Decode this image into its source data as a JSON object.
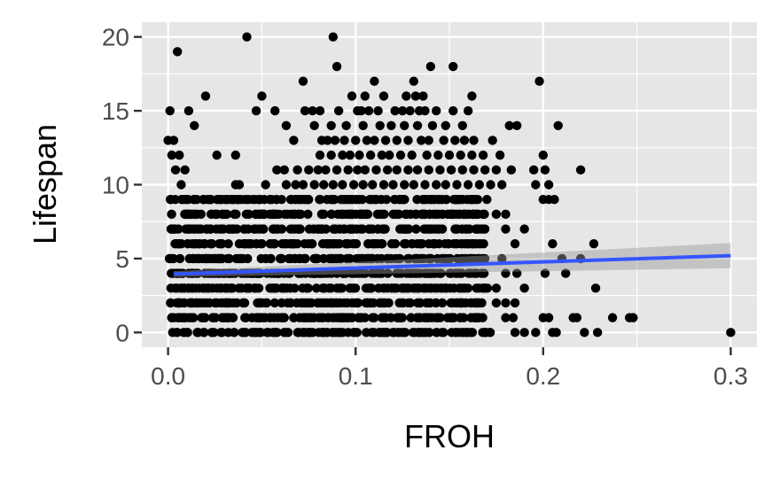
{
  "chart_data": {
    "type": "scatter",
    "title": "",
    "xlabel": "FROH",
    "ylabel": "Lifespan",
    "xlim": [
      -0.014,
      0.314
    ],
    "ylim": [
      -1.0,
      21.0
    ],
    "x_ticks": [
      "0.0",
      "0.1",
      "0.2",
      "0.3"
    ],
    "x_tick_values": [
      0.0,
      0.1,
      0.2,
      0.3
    ],
    "y_ticks": [
      "0",
      "5",
      "10",
      "15",
      "20"
    ],
    "y_tick_values": [
      0,
      5,
      10,
      15,
      20
    ],
    "grid": true,
    "background": "#e6e6e6",
    "point_color": "#000000",
    "fit_line_color": "#3355ff",
    "ribbon_color": "#999999",
    "points": [
      [
        0.088,
        20
      ],
      [
        0.042,
        20
      ],
      [
        0.005,
        19
      ],
      [
        0.09,
        18
      ],
      [
        0.14,
        18
      ],
      [
        0.152,
        18
      ],
      [
        0.072,
        17
      ],
      [
        0.11,
        17
      ],
      [
        0.131,
        17
      ],
      [
        0.198,
        17
      ],
      [
        0.02,
        16
      ],
      [
        0.05,
        16
      ],
      [
        0.098,
        16
      ],
      [
        0.105,
        16
      ],
      [
        0.115,
        16
      ],
      [
        0.127,
        16
      ],
      [
        0.132,
        16
      ],
      [
        0.136,
        16
      ],
      [
        0.162,
        16
      ],
      [
        0.001,
        15
      ],
      [
        0.011,
        15
      ],
      [
        0.047,
        15
      ],
      [
        0.057,
        15
      ],
      [
        0.073,
        15
      ],
      [
        0.077,
        15
      ],
      [
        0.081,
        15
      ],
      [
        0.091,
        15
      ],
      [
        0.101,
        15
      ],
      [
        0.103,
        15
      ],
      [
        0.107,
        15
      ],
      [
        0.112,
        15
      ],
      [
        0.121,
        15
      ],
      [
        0.125,
        15
      ],
      [
        0.129,
        15
      ],
      [
        0.134,
        15
      ],
      [
        0.137,
        15
      ],
      [
        0.143,
        15
      ],
      [
        0.152,
        15
      ],
      [
        0.16,
        15
      ],
      [
        0.014,
        14
      ],
      [
        0.063,
        14
      ],
      [
        0.078,
        14
      ],
      [
        0.087,
        14
      ],
      [
        0.095,
        14
      ],
      [
        0.104,
        14
      ],
      [
        0.113,
        14
      ],
      [
        0.119,
        14
      ],
      [
        0.126,
        14
      ],
      [
        0.133,
        14
      ],
      [
        0.141,
        14
      ],
      [
        0.148,
        14
      ],
      [
        0.157,
        14
      ],
      [
        0.182,
        14
      ],
      [
        0.186,
        14
      ],
      [
        0.208,
        14
      ],
      [
        0.0,
        13
      ],
      [
        0.003,
        13
      ],
      [
        0.067,
        13
      ],
      [
        0.082,
        13
      ],
      [
        0.085,
        13
      ],
      [
        0.089,
        13
      ],
      [
        0.094,
        13
      ],
      [
        0.1,
        13
      ],
      [
        0.106,
        13
      ],
      [
        0.11,
        13
      ],
      [
        0.116,
        13
      ],
      [
        0.122,
        13
      ],
      [
        0.128,
        13
      ],
      [
        0.135,
        13
      ],
      [
        0.139,
        13
      ],
      [
        0.147,
        13
      ],
      [
        0.153,
        13
      ],
      [
        0.158,
        13
      ],
      [
        0.163,
        13
      ],
      [
        0.173,
        13
      ],
      [
        0.002,
        12
      ],
      [
        0.006,
        12
      ],
      [
        0.026,
        12
      ],
      [
        0.036,
        12
      ],
      [
        0.081,
        12
      ],
      [
        0.087,
        12
      ],
      [
        0.093,
        12
      ],
      [
        0.097,
        12
      ],
      [
        0.102,
        12
      ],
      [
        0.108,
        12
      ],
      [
        0.114,
        12
      ],
      [
        0.118,
        12
      ],
      [
        0.124,
        12
      ],
      [
        0.13,
        12
      ],
      [
        0.138,
        12
      ],
      [
        0.144,
        12
      ],
      [
        0.15,
        12
      ],
      [
        0.156,
        12
      ],
      [
        0.162,
        12
      ],
      [
        0.168,
        12
      ],
      [
        0.177,
        12
      ],
      [
        0.2,
        12
      ],
      [
        0.004,
        11
      ],
      [
        0.009,
        11
      ],
      [
        0.058,
        11
      ],
      [
        0.062,
        11
      ],
      [
        0.069,
        11
      ],
      [
        0.075,
        11
      ],
      [
        0.08,
        11
      ],
      [
        0.084,
        11
      ],
      [
        0.09,
        11
      ],
      [
        0.096,
        11
      ],
      [
        0.101,
        11
      ],
      [
        0.105,
        11
      ],
      [
        0.111,
        11
      ],
      [
        0.117,
        11
      ],
      [
        0.122,
        11
      ],
      [
        0.128,
        11
      ],
      [
        0.133,
        11
      ],
      [
        0.139,
        11
      ],
      [
        0.145,
        11
      ],
      [
        0.151,
        11
      ],
      [
        0.157,
        11
      ],
      [
        0.163,
        11
      ],
      [
        0.169,
        11
      ],
      [
        0.175,
        11
      ],
      [
        0.183,
        11
      ],
      [
        0.195,
        11
      ],
      [
        0.201,
        11
      ],
      [
        0.22,
        11
      ],
      [
        0.007,
        10
      ],
      [
        0.036,
        10
      ],
      [
        0.038,
        10
      ],
      [
        0.052,
        10
      ],
      [
        0.063,
        10
      ],
      [
        0.068,
        10
      ],
      [
        0.072,
        10
      ],
      [
        0.078,
        10
      ],
      [
        0.083,
        10
      ],
      [
        0.088,
        10
      ],
      [
        0.093,
        10
      ],
      [
        0.099,
        10
      ],
      [
        0.104,
        10
      ],
      [
        0.109,
        10
      ],
      [
        0.115,
        10
      ],
      [
        0.12,
        10
      ],
      [
        0.126,
        10
      ],
      [
        0.131,
        10
      ],
      [
        0.137,
        10
      ],
      [
        0.143,
        10
      ],
      [
        0.148,
        10
      ],
      [
        0.154,
        10
      ],
      [
        0.16,
        10
      ],
      [
        0.166,
        10
      ],
      [
        0.172,
        10
      ],
      [
        0.178,
        10
      ],
      [
        0.196,
        10
      ],
      [
        0.203,
        10
      ]
    ],
    "fit_line": {
      "x": [
        0.003,
        0.3
      ],
      "y": [
        3.95,
        5.2
      ],
      "ribbon_lower": [
        3.75,
        4.35
      ],
      "ribbon_upper": [
        4.15,
        6.05
      ]
    }
  }
}
